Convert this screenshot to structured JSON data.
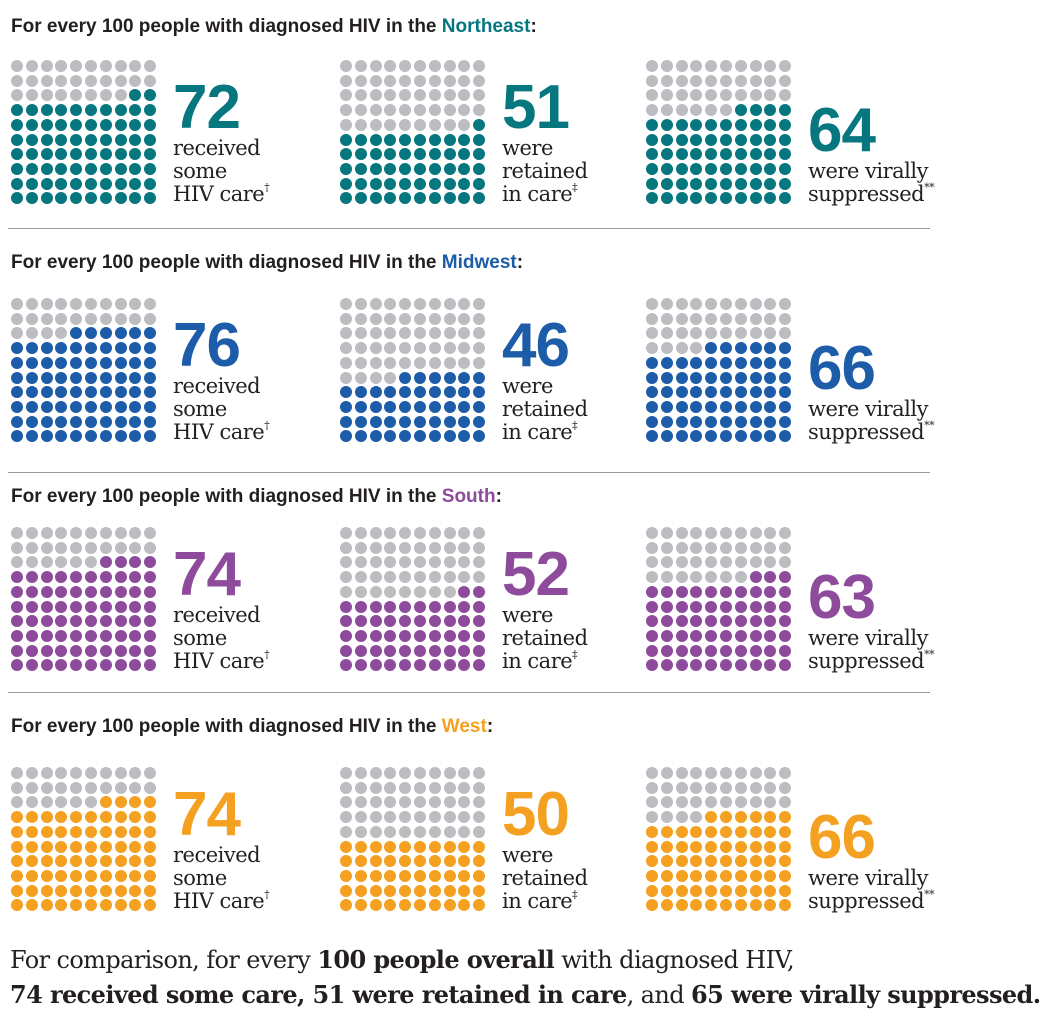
{
  "grey_color": "#bcbdc0",
  "title_prefix": "For every 100 people with diagnosed HIV in the ",
  "title_suffix": ":",
  "chart_data": [
    {
      "type": "waffle",
      "region": "Northeast",
      "color": "#06767f",
      "total": 100,
      "values": [
        72,
        51,
        64
      ],
      "labels": [
        [
          "received",
          "some",
          "HIV care"
        ],
        [
          "were",
          "retained",
          "in care"
        ],
        [
          "were virally",
          "suppressed"
        ]
      ],
      "marks": [
        "†",
        "‡",
        "**"
      ]
    },
    {
      "type": "waffle",
      "region": "Midwest",
      "color": "#1c5ca8",
      "total": 100,
      "values": [
        76,
        46,
        66
      ],
      "labels": [
        [
          "received",
          "some",
          "HIV care"
        ],
        [
          "were",
          "retained",
          "in care"
        ],
        [
          "were virally",
          "suppressed"
        ]
      ],
      "marks": [
        "†",
        "‡",
        "**"
      ]
    },
    {
      "type": "waffle",
      "region": "South",
      "color": "#8e4b9c",
      "total": 100,
      "values": [
        74,
        52,
        63
      ],
      "labels": [
        [
          "received",
          "some",
          "HIV care"
        ],
        [
          "were",
          "retained",
          "in care"
        ],
        [
          "were virally",
          "suppressed"
        ]
      ],
      "marks": [
        "†",
        "‡",
        "**"
      ]
    },
    {
      "type": "waffle",
      "region": "West",
      "color": "#f4a020",
      "total": 100,
      "values": [
        74,
        50,
        66
      ],
      "labels": [
        [
          "received",
          "some",
          "HIV care"
        ],
        [
          "were",
          "retained",
          "in care"
        ],
        [
          "were virally",
          "suppressed"
        ]
      ],
      "marks": [
        "†",
        "‡",
        "**"
      ]
    }
  ],
  "footer": {
    "line1_a": "For comparison, for every ",
    "line1_b": "100 people overall",
    "line1_c": " with diagnosed HIV,",
    "line2_a": "74 received some care, 51 were retained in care",
    "line2_b": ", and ",
    "line2_c": "65 were virally suppressed."
  }
}
